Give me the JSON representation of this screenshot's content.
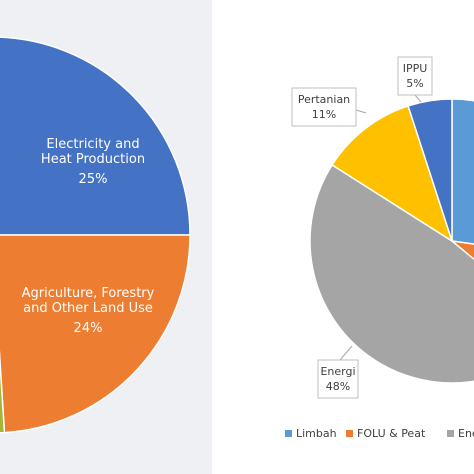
{
  "chart_data": [
    {
      "type": "pie",
      "title": "",
      "slices": [
        {
          "label": "Electricity and Heat Production",
          "value": 25,
          "value_label": "25%",
          "color": "#4472c4"
        },
        {
          "label": "Agriculture, Forestry and Other Land Use",
          "value": 24,
          "value_label": "24%",
          "color": "#ed7d31"
        }
      ],
      "label_lines": {
        "electricity": [
          "Electricity and",
          "Heat Production"
        ],
        "agriculture": [
          "Agriculture, Forestry",
          "and Other Land Use"
        ]
      },
      "panel_background": "#eef0f3",
      "cropped": true
    },
    {
      "type": "pie",
      "title": "",
      "slices": [
        {
          "label": "Limbah",
          "value": null,
          "value_label": "",
          "color": "#5b9bd5"
        },
        {
          "label": "FOLU & Peat",
          "value": null,
          "value_label": "",
          "color": "#ed7d31"
        },
        {
          "label": "Energi",
          "value": 48,
          "value_label": "48%",
          "color": "#a5a5a5"
        },
        {
          "label": "Pertanian",
          "value": 11,
          "value_label": "11%",
          "color": "#ffc000"
        },
        {
          "label": "IPPU",
          "value": 5,
          "value_label": "5%",
          "color": "#4472c4"
        }
      ],
      "legend": {
        "placement": "bottom",
        "items": [
          {
            "label": "Limbah",
            "color": "#5b9bd5"
          },
          {
            "label": "FOLU & Peat",
            "color": "#ed7d31"
          },
          {
            "label": "Ene",
            "color": "#a5a5a5"
          }
        ]
      },
      "cropped": true
    }
  ]
}
